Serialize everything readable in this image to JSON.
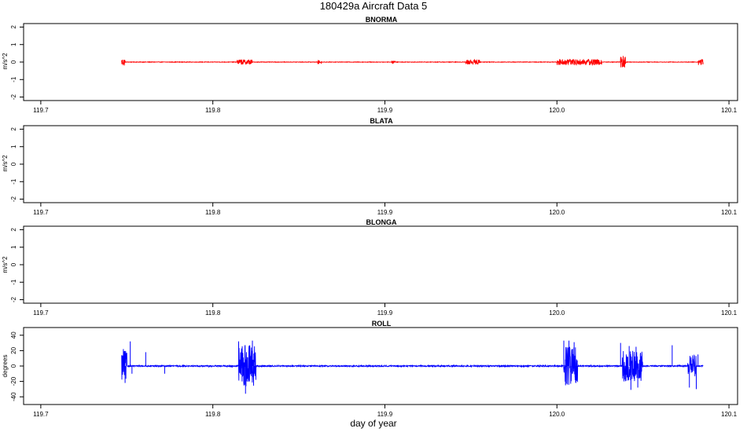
{
  "figure": {
    "title": "180429a   Aircraft Data 5",
    "xlabel": "day of year"
  },
  "chart_data": [
    {
      "type": "line",
      "title": "BNORMA",
      "ylabel": "m/s^2",
      "xlim": [
        119.69,
        120.105
      ],
      "ylim": [
        -2.2,
        2.2
      ],
      "xticks": [
        119.7,
        119.8,
        119.9,
        120.0,
        120.1
      ],
      "xtick_labels": [
        "119.7",
        "119.8",
        "119.9",
        "120.0",
        "120.1"
      ],
      "yticks": [
        -2,
        -1,
        0,
        1,
        2
      ],
      "ytick_labels": [
        "-2",
        "-1",
        "0",
        "1",
        "2"
      ],
      "grid": false,
      "color": "#ff0000",
      "data_range": [
        119.747,
        120.085
      ],
      "base": 0,
      "noise": 0.015,
      "bursts": [
        {
          "x0": 119.747,
          "x1": 119.749,
          "amp": 0.22
        },
        {
          "x0": 119.814,
          "x1": 119.823,
          "amp": 0.15
        },
        {
          "x0": 119.861,
          "x1": 119.863,
          "amp": 0.12
        },
        {
          "x0": 119.904,
          "x1": 119.906,
          "amp": 0.08
        },
        {
          "x0": 119.947,
          "x1": 119.955,
          "amp": 0.14
        },
        {
          "x0": 120.0,
          "x1": 120.026,
          "amp": 0.18
        },
        {
          "x0": 120.037,
          "x1": 120.04,
          "amp": 0.33
        },
        {
          "x0": 120.082,
          "x1": 120.085,
          "amp": 0.22
        }
      ],
      "spikes": []
    },
    {
      "type": "line",
      "title": "BLATA",
      "ylabel": "m/s^2",
      "xlim": [
        119.69,
        120.105
      ],
      "ylim": [
        -2.2,
        2.2
      ],
      "xticks": [
        119.7,
        119.8,
        119.9,
        120.0,
        120.1
      ],
      "xtick_labels": [
        "119.7",
        "119.8",
        "119.9",
        "120.0",
        "120.1"
      ],
      "yticks": [
        -2,
        -1,
        0,
        1,
        2
      ],
      "ytick_labels": [
        "-2",
        "-1",
        "0",
        "1",
        "2"
      ],
      "grid": false,
      "color": "#ff0000",
      "data_range": null,
      "base": 0,
      "noise": 0,
      "bursts": [],
      "spikes": []
    },
    {
      "type": "line",
      "title": "BLONGA",
      "ylabel": "m/s^2",
      "xlim": [
        119.69,
        120.105
      ],
      "ylim": [
        -2.2,
        2.2
      ],
      "xticks": [
        119.7,
        119.8,
        119.9,
        120.0,
        120.1
      ],
      "xtick_labels": [
        "119.7",
        "119.8",
        "119.9",
        "120.0",
        "120.1"
      ],
      "yticks": [
        -2,
        -1,
        0,
        1,
        2
      ],
      "ytick_labels": [
        "-2",
        "-1",
        "0",
        "1",
        "2"
      ],
      "grid": false,
      "color": "#ff0000",
      "data_range": null,
      "base": 0,
      "noise": 0,
      "bursts": [],
      "spikes": []
    },
    {
      "type": "line",
      "title": "ROLL",
      "ylabel": "degrees",
      "xlim": [
        119.69,
        120.105
      ],
      "ylim": [
        -50,
        50
      ],
      "xticks": [
        119.7,
        119.8,
        119.9,
        120.0,
        120.1
      ],
      "xtick_labels": [
        "119.7",
        "119.8",
        "119.9",
        "120.0",
        "120.1"
      ],
      "yticks": [
        -40,
        -20,
        0,
        20,
        40
      ],
      "ytick_labels": [
        "-40",
        "-20",
        "0",
        "20",
        "40"
      ],
      "grid": false,
      "color": "#0000ff",
      "data_range": [
        119.747,
        120.085
      ],
      "base": 0,
      "noise": 0.8,
      "bursts": [
        {
          "x0": 119.747,
          "x1": 119.75,
          "amp": 20
        },
        {
          "x0": 119.815,
          "x1": 119.825,
          "amp": 28
        },
        {
          "x0": 120.004,
          "x1": 120.012,
          "amp": 25
        },
        {
          "x0": 120.038,
          "x1": 120.05,
          "amp": 20
        },
        {
          "x0": 120.076,
          "x1": 120.081,
          "amp": 14
        }
      ],
      "spikes": [
        {
          "x": 119.748,
          "y": 22
        },
        {
          "x": 119.749,
          "y": -22
        },
        {
          "x": 119.752,
          "y": 32
        },
        {
          "x": 119.753,
          "y": -10
        },
        {
          "x": 119.761,
          "y": 18
        },
        {
          "x": 119.772,
          "y": -10
        },
        {
          "x": 119.815,
          "y": 32
        },
        {
          "x": 119.817,
          "y": -20
        },
        {
          "x": 119.819,
          "y": -36
        },
        {
          "x": 119.821,
          "y": 20
        },
        {
          "x": 119.823,
          "y": 33
        },
        {
          "x": 119.824,
          "y": -10
        },
        {
          "x": 120.004,
          "y": 33
        },
        {
          "x": 120.005,
          "y": -25
        },
        {
          "x": 120.007,
          "y": 33
        },
        {
          "x": 120.008,
          "y": -23
        },
        {
          "x": 120.01,
          "y": 31
        },
        {
          "x": 120.011,
          "y": -22
        },
        {
          "x": 120.037,
          "y": 30
        },
        {
          "x": 120.039,
          "y": -20
        },
        {
          "x": 120.042,
          "y": 26
        },
        {
          "x": 120.043,
          "y": -31
        },
        {
          "x": 120.046,
          "y": 25
        },
        {
          "x": 120.047,
          "y": -28
        },
        {
          "x": 120.067,
          "y": 27
        },
        {
          "x": 120.077,
          "y": -28
        },
        {
          "x": 120.078,
          "y": 8
        },
        {
          "x": 120.081,
          "y": -30
        },
        {
          "x": 120.082,
          "y": 15
        }
      ]
    }
  ]
}
